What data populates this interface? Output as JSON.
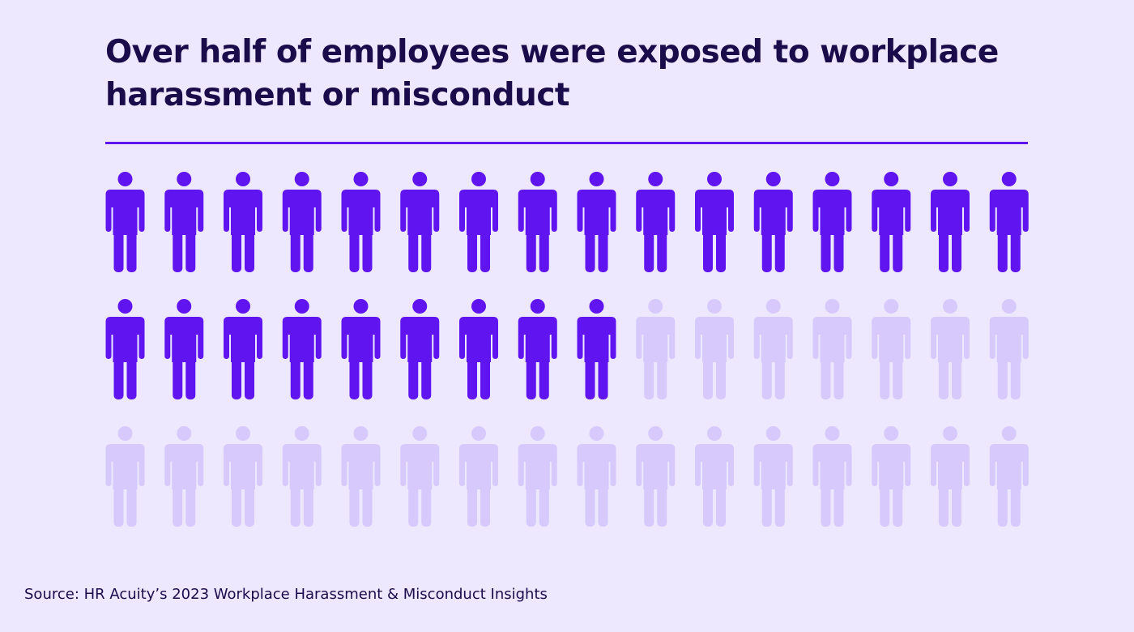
{
  "header": {
    "title": "Over half of employees were exposed to workplace harassment or misconduct"
  },
  "footer": {
    "source": "Source: HR Acuity’s 2023 Workplace Harassment & Misconduct Insights"
  },
  "colors": {
    "background": "#ede8fd",
    "highlight": "#5f14f0",
    "muted": "#d7c9fb",
    "text": "#1a0b4a"
  },
  "chart_data": {
    "type": "pictograph",
    "icon": "person-icon",
    "total": 48,
    "highlighted": 25,
    "rows": 3,
    "columns": 16,
    "title": "Over half of employees were exposed to workplace harassment or misconduct"
  }
}
